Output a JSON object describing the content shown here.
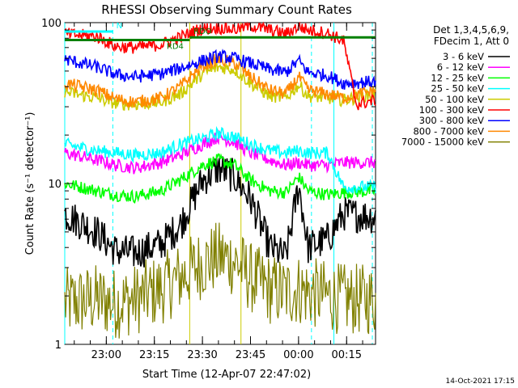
{
  "chart_data": {
    "type": "line",
    "title": "RHESSI Observing Summary Count Rates",
    "xlabel": "Start Time (12-Apr-07 22:47:02)",
    "ylabel": "Count Rate (s⁻¹ detector⁻¹)",
    "yscale": "log",
    "ylim": [
      1,
      100
    ],
    "xlim_minutes": [
      0,
      97
    ],
    "y_ticks": [
      {
        "value": 1,
        "label": "1"
      },
      {
        "value": 10,
        "label": "10"
      },
      {
        "value": 100,
        "label": "100"
      }
    ],
    "x_ticks": [
      {
        "t": 12.97,
        "label": "23:00"
      },
      {
        "t": 27.97,
        "label": "23:15"
      },
      {
        "t": 42.97,
        "label": "23:30"
      },
      {
        "t": 57.97,
        "label": "23:45"
      },
      {
        "t": 72.97,
        "label": "00:00"
      },
      {
        "t": 87.97,
        "label": "00:15"
      }
    ],
    "legend_header": [
      "Det 1,3,4,5,6,9,",
      "FDecim 1, Att 0"
    ],
    "legend_position": "right",
    "series": [
      {
        "name": "3 - 6 keV",
        "color": "#000000",
        "points": [
          [
            0,
            6.5
          ],
          [
            10,
            5
          ],
          [
            16,
            3.8
          ],
          [
            22,
            3.7
          ],
          [
            30,
            4.2
          ],
          [
            36,
            5.5
          ],
          [
            43,
            10.5
          ],
          [
            48,
            12.5
          ],
          [
            53,
            11
          ],
          [
            58,
            8
          ],
          [
            64,
            4
          ],
          [
            69,
            3.5
          ],
          [
            73,
            9.8
          ],
          [
            76,
            4
          ],
          [
            82,
            4.5
          ],
          [
            87,
            6.5
          ],
          [
            97,
            6.2
          ]
        ]
      },
      {
        "name": "6 - 12 keV",
        "color": "#ff00ff",
        "points": [
          [
            0,
            15.5
          ],
          [
            10,
            14
          ],
          [
            16,
            13
          ],
          [
            22,
            12.5
          ],
          [
            30,
            13.5
          ],
          [
            36,
            15
          ],
          [
            43,
            17.5
          ],
          [
            48,
            19.5
          ],
          [
            53,
            18
          ],
          [
            58,
            15.5
          ],
          [
            64,
            14
          ],
          [
            69,
            13
          ],
          [
            73,
            13.5
          ],
          [
            76,
            13
          ],
          [
            82,
            13
          ],
          [
            87,
            13.5
          ],
          [
            97,
            13.5
          ]
        ]
      },
      {
        "name": "12 - 25 keV",
        "color": "#00ff00",
        "points": [
          [
            0,
            10
          ],
          [
            10,
            9
          ],
          [
            16,
            8.5
          ],
          [
            22,
            8.3
          ],
          [
            30,
            9
          ],
          [
            36,
            10.5
          ],
          [
            43,
            13
          ],
          [
            48,
            14
          ],
          [
            53,
            13
          ],
          [
            58,
            10.5
          ],
          [
            64,
            9
          ],
          [
            69,
            8.8
          ],
          [
            73,
            11
          ],
          [
            76,
            9
          ],
          [
            82,
            8.5
          ],
          [
            87,
            8.8
          ],
          [
            97,
            9
          ]
        ]
      },
      {
        "name": "25 - 50 keV",
        "color": "#00ffff",
        "points": [
          [
            0,
            17.5
          ],
          [
            10,
            16
          ],
          [
            16,
            15.5
          ],
          [
            22,
            15
          ],
          [
            30,
            15.5
          ],
          [
            36,
            17.5
          ],
          [
            43,
            19
          ],
          [
            48,
            20.5
          ],
          [
            53,
            19.5
          ],
          [
            58,
            17.5
          ],
          [
            64,
            16
          ],
          [
            69,
            15.5
          ],
          [
            73,
            16
          ],
          [
            76,
            15.5
          ],
          [
            82,
            15.5
          ],
          [
            87,
            9.5
          ],
          [
            97,
            9.5
          ]
        ]
      },
      {
        "name": "50 - 100 keV",
        "color": "#cccc00",
        "points": [
          [
            0,
            37
          ],
          [
            10,
            34
          ],
          [
            16,
            31.5
          ],
          [
            22,
            31
          ],
          [
            30,
            32
          ],
          [
            36,
            36
          ],
          [
            43,
            48
          ],
          [
            48,
            53
          ],
          [
            53,
            51
          ],
          [
            58,
            42
          ],
          [
            64,
            35
          ],
          [
            69,
            34
          ],
          [
            73,
            41
          ],
          [
            76,
            35
          ],
          [
            82,
            34
          ],
          [
            87,
            33
          ],
          [
            97,
            36
          ]
        ]
      },
      {
        "name": "100 - 300 keV",
        "color": "#ff0000",
        "points": [
          [
            0,
            85
          ],
          [
            10,
            82
          ],
          [
            16,
            71
          ],
          [
            22,
            70
          ],
          [
            30,
            73
          ],
          [
            36,
            81
          ],
          [
            42,
            91
          ],
          [
            48,
            93
          ],
          [
            53,
            91
          ],
          [
            58,
            96
          ],
          [
            64,
            90
          ],
          [
            69,
            85
          ],
          [
            73,
            95
          ],
          [
            76,
            90
          ],
          [
            82,
            86
          ],
          [
            87,
            77
          ],
          [
            91,
            31
          ],
          [
            97,
            33
          ]
        ]
      },
      {
        "name": "300 - 800 keV",
        "color": "#0000ff",
        "points": [
          [
            0,
            59
          ],
          [
            10,
            53
          ],
          [
            16,
            47.5
          ],
          [
            22,
            46
          ],
          [
            30,
            48
          ],
          [
            36,
            52
          ],
          [
            43,
            58
          ],
          [
            48,
            62
          ],
          [
            53,
            60
          ],
          [
            58,
            56
          ],
          [
            64,
            51
          ],
          [
            69,
            49
          ],
          [
            73,
            58
          ],
          [
            76,
            49
          ],
          [
            82,
            47
          ],
          [
            87,
            42
          ],
          [
            97,
            43
          ]
        ]
      },
      {
        "name": "800 - 7000 keV",
        "color": "#ff8800",
        "points": [
          [
            0,
            42
          ],
          [
            10,
            38
          ],
          [
            16,
            33.5
          ],
          [
            22,
            32
          ],
          [
            30,
            34
          ],
          [
            36,
            40
          ],
          [
            43,
            54
          ],
          [
            48,
            59
          ],
          [
            53,
            56
          ],
          [
            58,
            46
          ],
          [
            64,
            38
          ],
          [
            69,
            36
          ],
          [
            73,
            46
          ],
          [
            76,
            38
          ],
          [
            82,
            36
          ],
          [
            87,
            34
          ],
          [
            97,
            38
          ]
        ]
      },
      {
        "name": "7000 - 15000 keV",
        "color": "#808000",
        "points": [
          [
            0,
            1.8
          ],
          [
            10,
            1.9
          ],
          [
            16,
            1.8
          ],
          [
            22,
            1.9
          ],
          [
            30,
            2.2
          ],
          [
            36,
            2.6
          ],
          [
            43,
            3.2
          ],
          [
            48,
            3.5
          ],
          [
            53,
            3.3
          ],
          [
            58,
            2.6
          ],
          [
            64,
            2.2
          ],
          [
            69,
            2.1
          ],
          [
            73,
            2.2
          ],
          [
            76,
            2.1
          ],
          [
            82,
            2
          ],
          [
            87,
            1.9
          ],
          [
            97,
            1.9
          ]
        ]
      }
    ],
    "annotations": [
      {
        "label": "N",
        "color": "#00ffff",
        "t_start": 0,
        "t_end": 15,
        "value": 88
      },
      {
        "label": "RD4",
        "color": "#008000",
        "t_start": 0,
        "t_end": 39,
        "value": 78
      },
      {
        "label": "RDO",
        "color": "#008000",
        "t_start": 39,
        "t_end": 97,
        "value": 81
      }
    ],
    "vertical_markers": [
      {
        "t": 0,
        "color": "#00ffff",
        "style": "solid"
      },
      {
        "t": 15,
        "color": "#00ffff",
        "style": "dashed"
      },
      {
        "t": 39,
        "color": "#cccc00",
        "style": "solid"
      },
      {
        "t": 55,
        "color": "#cccc00",
        "style": "solid"
      },
      {
        "t": 77,
        "color": "#00ffff",
        "style": "dashed"
      },
      {
        "t": 84,
        "color": "#00ffff",
        "style": "solid"
      },
      {
        "t": 96,
        "color": "#00ffff",
        "style": "dashed"
      }
    ],
    "footer_timestamp": "14-Oct-2021 17:15"
  }
}
